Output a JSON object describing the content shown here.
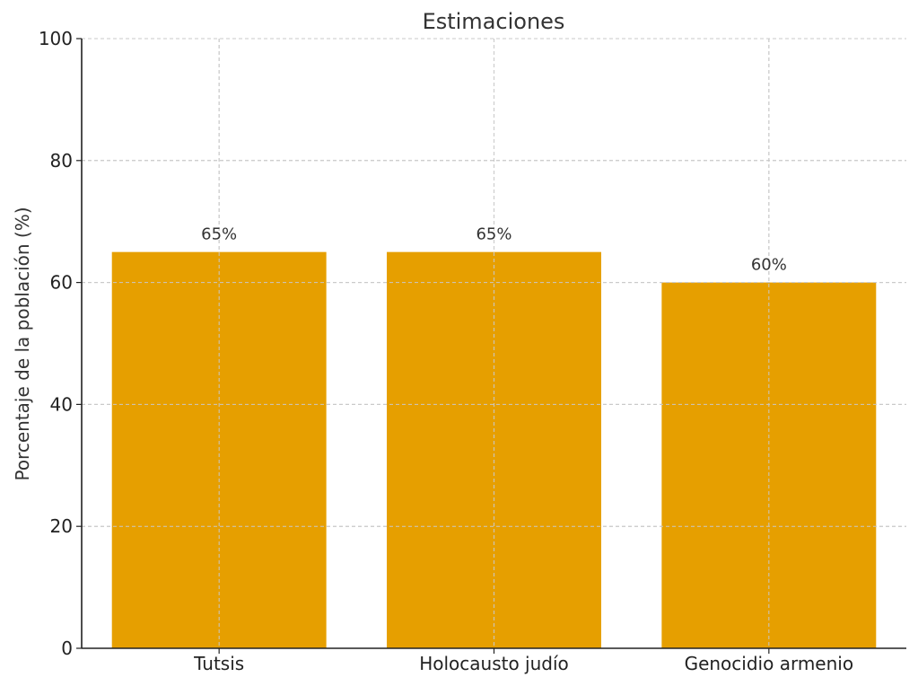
{
  "chart_data": {
    "type": "bar",
    "title": "Estimaciones",
    "xlabel": "",
    "ylabel": "Porcentaje de la población (%)",
    "categories": [
      "Tutsis",
      "Holocausto judío",
      "Genocidio armenio"
    ],
    "values": [
      65,
      65,
      60
    ],
    "data_labels": [
      "65%",
      "65%",
      "60%"
    ],
    "ylim": [
      0,
      100
    ],
    "yticks": [
      0,
      20,
      40,
      60,
      80,
      100
    ],
    "grid": true,
    "bar_color": "#E69F00",
    "legend": null
  }
}
